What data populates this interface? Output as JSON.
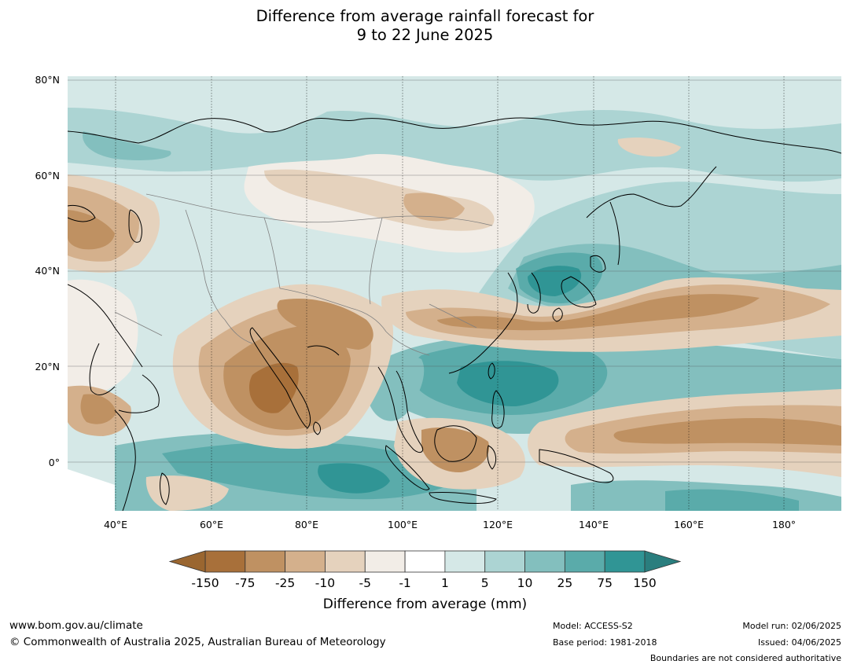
{
  "title": {
    "line1": "Difference from average rainfall forecast for",
    "line2": "9 to 22 June 2025"
  },
  "map": {
    "lat_labels": [
      "80°N",
      "60°N",
      "40°N",
      "20°N",
      "0°"
    ],
    "lon_labels": [
      "40°E",
      "60°E",
      "80°E",
      "100°E",
      "120°E",
      "140°E",
      "160°E",
      "180°"
    ],
    "extent": {
      "lon_min": 30,
      "lon_max": 192,
      "lat_min": -10,
      "lat_max": 81
    },
    "colors": {
      "land_outline": "#000000",
      "border": "#808080",
      "gridline": "#000000"
    }
  },
  "colorbar": {
    "ticks": [
      "-150",
      "-75",
      "-25",
      "-10",
      "-5",
      "-1",
      "1",
      "5",
      "10",
      "25",
      "75",
      "150"
    ],
    "colors": [
      "#a8703a",
      "#bf9162",
      "#d4b08c",
      "#e5d2bd",
      "#f2ede7",
      "#ffffff",
      "#d5e8e7",
      "#acd4d3",
      "#83bfbe",
      "#5aabaa",
      "#309595"
    ],
    "under_color": "#9a6630",
    "over_color": "#2a7e7e",
    "label": "Difference from average (mm)"
  },
  "footer": {
    "website": "www.bom.gov.au/climate",
    "copyright": "© Commonwealth of Australia 2025, Australian Bureau of Meteorology",
    "model": "Model: ACCESS-S2",
    "base_period": "Base period: 1981-2018",
    "model_run": "Model run: 02/06/2025",
    "issued": "Issued: 04/06/2025",
    "disclaimer": "Boundaries are not considered authoritative"
  }
}
